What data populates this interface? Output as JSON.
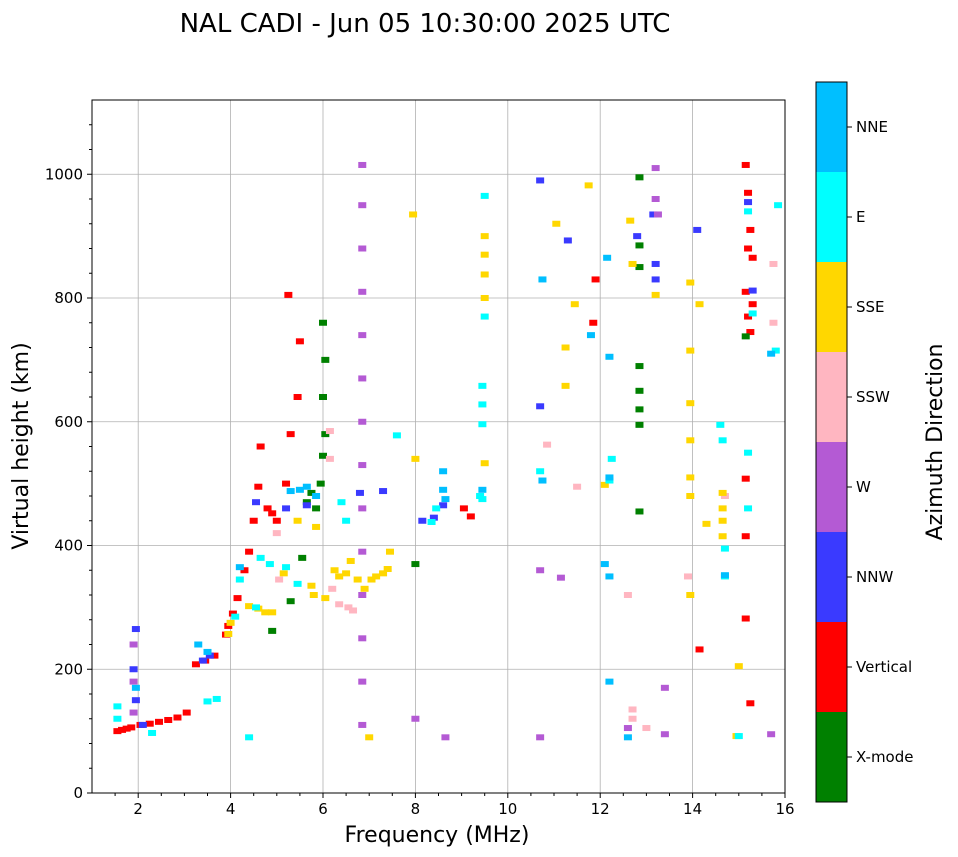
{
  "chart_data": {
    "type": "scatter",
    "title": "NAL CADI - Jun 05 10:30:00 2025 UTC",
    "xlabel": "Frequency (MHz)",
    "ylabel": "Virtual height (km)",
    "xlim": [
      1,
      16
    ],
    "ylim": [
      0,
      1120
    ],
    "xticks": [
      2,
      4,
      6,
      8,
      10,
      12,
      14,
      16
    ],
    "yticks": [
      0,
      200,
      400,
      600,
      800,
      1000
    ],
    "grid": true,
    "colorbar": {
      "label": "Azimuth Direction",
      "categories": [
        {
          "name": "X-mode",
          "color": "#008000"
        },
        {
          "name": "Vertical",
          "color": "#ff0000"
        },
        {
          "name": "NNW",
          "color": "#3a3aff"
        },
        {
          "name": "W",
          "color": "#b45ad4"
        },
        {
          "name": "SSW",
          "color": "#ffb6c1"
        },
        {
          "name": "SSE",
          "color": "#ffd700"
        },
        {
          "name": "E",
          "color": "#00ffff"
        },
        {
          "name": "NNE",
          "color": "#00bfff"
        }
      ]
    },
    "series": [
      {
        "name": "Vertical",
        "points": [
          [
            1.55,
            100
          ],
          [
            1.65,
            102
          ],
          [
            1.75,
            104
          ],
          [
            1.85,
            106
          ],
          [
            2.05,
            110
          ],
          [
            2.25,
            112
          ],
          [
            2.45,
            115
          ],
          [
            2.65,
            118
          ],
          [
            2.85,
            122
          ],
          [
            3.05,
            130
          ],
          [
            3.25,
            208
          ],
          [
            3.45,
            214
          ],
          [
            3.65,
            222
          ],
          [
            3.9,
            256
          ],
          [
            3.95,
            270
          ],
          [
            4.05,
            290
          ],
          [
            4.15,
            315
          ],
          [
            4.3,
            360
          ],
          [
            4.4,
            390
          ],
          [
            4.5,
            440
          ],
          [
            4.6,
            495
          ],
          [
            4.65,
            560
          ],
          [
            4.8,
            460
          ],
          [
            4.9,
            452
          ],
          [
            5.0,
            440
          ],
          [
            5.2,
            500
          ],
          [
            5.3,
            580
          ],
          [
            5.45,
            640
          ],
          [
            5.5,
            730
          ],
          [
            5.25,
            805
          ],
          [
            15.15,
            1015
          ],
          [
            15.2,
            970
          ],
          [
            15.25,
            910
          ],
          [
            15.2,
            880
          ],
          [
            15.3,
            865
          ],
          [
            15.15,
            810
          ],
          [
            15.3,
            790
          ],
          [
            15.2,
            770
          ],
          [
            15.25,
            745
          ],
          [
            15.15,
            508
          ],
          [
            15.15,
            415
          ],
          [
            15.15,
            282
          ],
          [
            15.25,
            145
          ],
          [
            14.15,
            232
          ],
          [
            11.9,
            830
          ],
          [
            11.85,
            760
          ],
          [
            9.05,
            460
          ],
          [
            9.2,
            447
          ]
        ]
      },
      {
        "name": "X-mode",
        "points": [
          [
            4.9,
            262
          ],
          [
            5.3,
            310
          ],
          [
            5.55,
            380
          ],
          [
            5.65,
            470
          ],
          [
            5.75,
            485
          ],
          [
            5.85,
            460
          ],
          [
            5.95,
            500
          ],
          [
            6.0,
            545
          ],
          [
            6.05,
            580
          ],
          [
            6.0,
            640
          ],
          [
            6.05,
            700
          ],
          [
            6.0,
            760
          ],
          [
            12.85,
            995
          ],
          [
            12.85,
            885
          ],
          [
            12.85,
            850
          ],
          [
            12.85,
            690
          ],
          [
            12.85,
            650
          ],
          [
            12.85,
            620
          ],
          [
            12.85,
            595
          ],
          [
            12.85,
            455
          ],
          [
            15.15,
            738
          ],
          [
            8.0,
            370
          ]
        ]
      },
      {
        "name": "NNW",
        "points": [
          [
            1.95,
            265
          ],
          [
            1.9,
            200
          ],
          [
            1.95,
            150
          ],
          [
            2.1,
            110
          ],
          [
            3.4,
            214
          ],
          [
            3.55,
            222
          ],
          [
            4.55,
            470
          ],
          [
            5.2,
            460
          ],
          [
            5.65,
            465
          ],
          [
            6.8,
            485
          ],
          [
            7.3,
            488
          ],
          [
            8.15,
            440
          ],
          [
            8.4,
            445
          ],
          [
            8.6,
            465
          ],
          [
            10.7,
            625
          ],
          [
            10.7,
            990
          ],
          [
            12.8,
            900
          ],
          [
            13.15,
            935
          ],
          [
            13.2,
            855
          ],
          [
            14.1,
            910
          ],
          [
            15.2,
            955
          ],
          [
            15.3,
            812
          ],
          [
            13.2,
            830
          ],
          [
            11.3,
            893
          ]
        ]
      },
      {
        "name": "W",
        "points": [
          [
            6.85,
            1015
          ],
          [
            6.85,
            950
          ],
          [
            6.85,
            880
          ],
          [
            6.85,
            810
          ],
          [
            6.85,
            740
          ],
          [
            6.85,
            670
          ],
          [
            6.85,
            600
          ],
          [
            6.85,
            530
          ],
          [
            6.85,
            460
          ],
          [
            6.85,
            390
          ],
          [
            6.85,
            320
          ],
          [
            6.85,
            250
          ],
          [
            6.85,
            180
          ],
          [
            6.85,
            110
          ],
          [
            1.9,
            240
          ],
          [
            1.9,
            180
          ],
          [
            1.9,
            130
          ],
          [
            13.2,
            1010
          ],
          [
            13.2,
            960
          ],
          [
            13.25,
            935
          ],
          [
            13.4,
            170
          ],
          [
            13.4,
            95
          ],
          [
            15.7,
            95
          ],
          [
            8.65,
            90
          ],
          [
            10.7,
            90
          ],
          [
            10.7,
            360
          ],
          [
            11.15,
            348
          ],
          [
            8.0,
            120
          ],
          [
            12.6,
            105
          ]
        ]
      },
      {
        "name": "SSW",
        "points": [
          [
            5.0,
            420
          ],
          [
            5.05,
            345
          ],
          [
            6.15,
            540
          ],
          [
            6.15,
            585
          ],
          [
            6.2,
            330
          ],
          [
            6.35,
            305
          ],
          [
            6.55,
            300
          ],
          [
            6.65,
            295
          ],
          [
            13.0,
            105
          ],
          [
            12.7,
            135
          ],
          [
            12.7,
            120
          ],
          [
            12.6,
            320
          ],
          [
            13.9,
            350
          ],
          [
            14.7,
            480
          ],
          [
            10.85,
            563
          ],
          [
            11.5,
            495
          ],
          [
            15.75,
            760
          ],
          [
            15.75,
            855
          ]
        ]
      },
      {
        "name": "SSE",
        "points": [
          [
            3.95,
            257
          ],
          [
            4.0,
            275
          ],
          [
            4.4,
            302
          ],
          [
            4.6,
            298
          ],
          [
            4.75,
            292
          ],
          [
            4.9,
            292
          ],
          [
            5.15,
            355
          ],
          [
            5.75,
            335
          ],
          [
            5.8,
            320
          ],
          [
            6.05,
            315
          ],
          [
            6.25,
            360
          ],
          [
            6.35,
            350
          ],
          [
            6.5,
            355
          ],
          [
            6.6,
            375
          ],
          [
            6.75,
            345
          ],
          [
            6.9,
            330
          ],
          [
            7.05,
            345
          ],
          [
            7.15,
            350
          ],
          [
            7.3,
            355
          ],
          [
            7.4,
            362
          ],
          [
            7.45,
            390
          ],
          [
            5.45,
            440
          ],
          [
            5.85,
            430
          ],
          [
            12.7,
            855
          ],
          [
            12.65,
            925
          ],
          [
            13.2,
            805
          ],
          [
            13.95,
            825
          ],
          [
            14.15,
            790
          ],
          [
            13.95,
            715
          ],
          [
            13.95,
            630
          ],
          [
            13.95,
            570
          ],
          [
            13.95,
            510
          ],
          [
            13.95,
            480
          ],
          [
            13.95,
            320
          ],
          [
            14.3,
            435
          ],
          [
            14.65,
            485
          ],
          [
            14.65,
            460
          ],
          [
            14.65,
            440
          ],
          [
            14.65,
            415
          ],
          [
            15.0,
            205
          ],
          [
            14.95,
            92
          ],
          [
            12.1,
            498
          ],
          [
            11.25,
            658
          ],
          [
            11.25,
            720
          ],
          [
            11.45,
            790
          ],
          [
            11.75,
            982
          ],
          [
            9.5,
            800
          ],
          [
            9.5,
            838
          ],
          [
            9.5,
            870
          ],
          [
            9.5,
            900
          ],
          [
            9.5,
            533
          ],
          [
            8.0,
            540
          ],
          [
            7.95,
            935
          ],
          [
            7.0,
            90
          ],
          [
            11.05,
            920
          ]
        ]
      },
      {
        "name": "E",
        "points": [
          [
            1.55,
            140
          ],
          [
            1.55,
            120
          ],
          [
            2.3,
            97
          ],
          [
            3.5,
            148
          ],
          [
            3.7,
            152
          ],
          [
            4.1,
            285
          ],
          [
            4.2,
            345
          ],
          [
            4.55,
            300
          ],
          [
            4.65,
            380
          ],
          [
            4.85,
            370
          ],
          [
            5.2,
            365
          ],
          [
            5.45,
            338
          ],
          [
            6.4,
            470
          ],
          [
            6.5,
            440
          ],
          [
            7.6,
            578
          ],
          [
            8.35,
            438
          ],
          [
            8.45,
            460
          ],
          [
            9.4,
            480
          ],
          [
            9.45,
            475
          ],
          [
            9.45,
            596
          ],
          [
            9.45,
            628
          ],
          [
            9.45,
            658
          ],
          [
            9.5,
            770
          ],
          [
            9.5,
            965
          ],
          [
            10.7,
            520
          ],
          [
            12.2,
            505
          ],
          [
            12.25,
            540
          ],
          [
            14.6,
            595
          ],
          [
            14.65,
            570
          ],
          [
            14.7,
            395
          ],
          [
            14.7,
            350
          ],
          [
            15.0,
            92
          ],
          [
            15.2,
            550
          ],
          [
            15.2,
            460
          ],
          [
            15.2,
            940
          ],
          [
            15.3,
            775
          ],
          [
            15.8,
            715
          ],
          [
            15.85,
            950
          ],
          [
            4.4,
            90
          ]
        ]
      },
      {
        "name": "NNE",
        "points": [
          [
            1.95,
            170
          ],
          [
            3.3,
            240
          ],
          [
            3.5,
            228
          ],
          [
            4.2,
            365
          ],
          [
            5.3,
            488
          ],
          [
            5.5,
            490
          ],
          [
            5.65,
            495
          ],
          [
            5.85,
            480
          ],
          [
            8.6,
            520
          ],
          [
            8.6,
            490
          ],
          [
            8.65,
            475
          ],
          [
            10.75,
            830
          ],
          [
            10.75,
            505
          ],
          [
            12.15,
            865
          ],
          [
            12.2,
            705
          ],
          [
            12.2,
            510
          ],
          [
            12.2,
            350
          ],
          [
            12.2,
            180
          ],
          [
            12.1,
            370
          ],
          [
            12.6,
            90
          ],
          [
            14.7,
            352
          ],
          [
            11.8,
            740
          ],
          [
            15.7,
            710
          ],
          [
            9.45,
            490
          ]
        ]
      }
    ]
  }
}
